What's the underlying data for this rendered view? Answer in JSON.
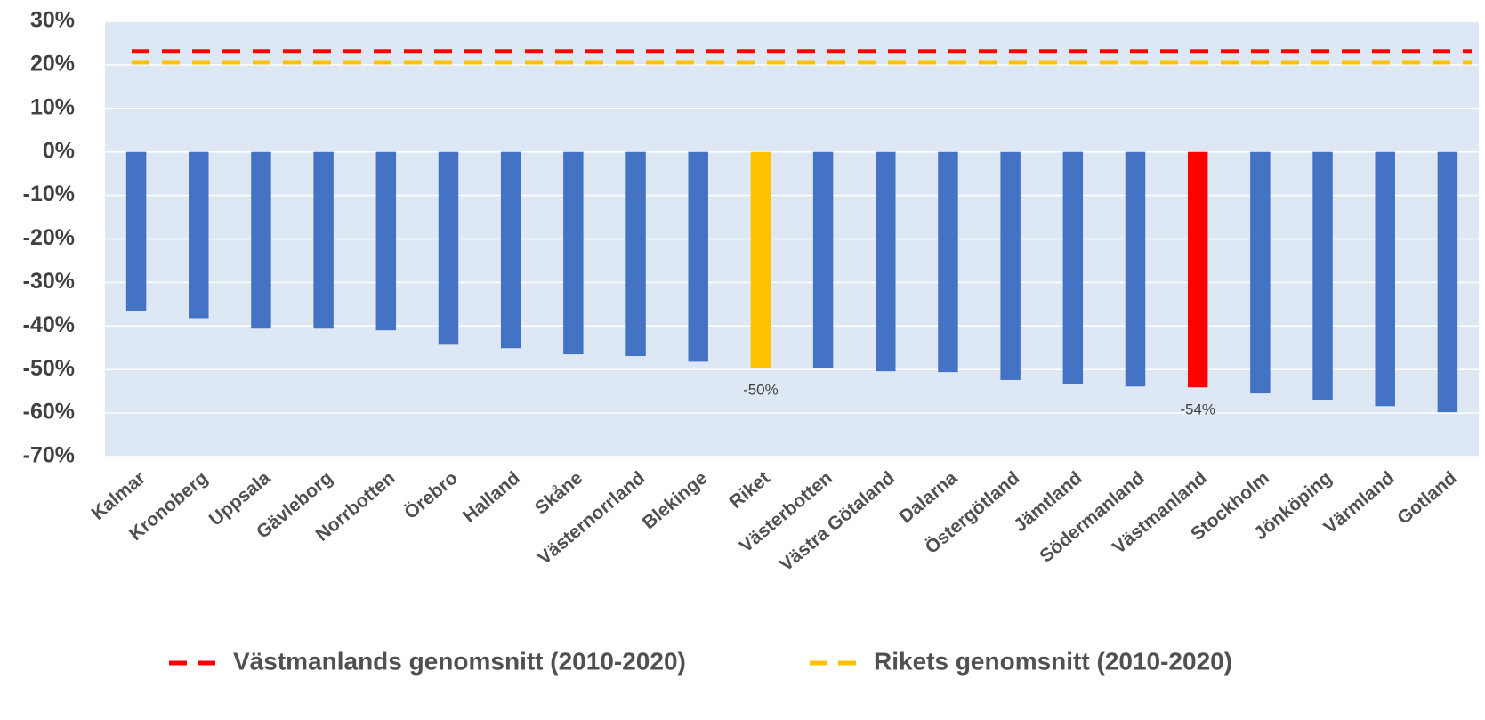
{
  "chart_data": {
    "type": "bar",
    "categories": [
      "Kalmar",
      "Kronoberg",
      "Uppsala",
      "Gävleborg",
      "Norrbotten",
      "Örebro",
      "Halland",
      "Skåne",
      "Västernorrland",
      "Blekinge",
      "Riket",
      "Västerbotten",
      "Västra Götaland",
      "Dalarna",
      "Östergötland",
      "Jämtland",
      "Södermanland",
      "Västmanland",
      "Stockholm",
      "Jönköping",
      "Värmland",
      "Gotland"
    ],
    "values": [
      -36.5,
      -38.2,
      -40.6,
      -40.6,
      -41,
      -44.3,
      -45.1,
      -46.5,
      -46.9,
      -48.2,
      -49.6,
      -49.6,
      -50.4,
      -50.6,
      -52.4,
      -53.3,
      -53.9,
      -54.1,
      -55.5,
      -57.1,
      -58.4,
      -59.8
    ],
    "value_labels": [
      null,
      null,
      null,
      null,
      null,
      null,
      null,
      null,
      null,
      null,
      "-50%",
      null,
      null,
      null,
      null,
      null,
      null,
      "-54%",
      null,
      null,
      null,
      null
    ],
    "colors": [
      "#4472c4",
      "#4472c4",
      "#4472c4",
      "#4472c4",
      "#4472c4",
      "#4472c4",
      "#4472c4",
      "#4472c4",
      "#4472c4",
      "#4472c4",
      "#ffc000",
      "#4472c4",
      "#4472c4",
      "#4472c4",
      "#4472c4",
      "#4472c4",
      "#4472c4",
      "#ff0000",
      "#4472c4",
      "#4472c4",
      "#4472c4",
      "#4472c4"
    ],
    "reference_lines": [
      {
        "name": "Västmanlands genomsnitt (2010-2020)",
        "color": "#ff0000",
        "value": 23.1
      },
      {
        "name": "Rikets genomsnitt (2010-2020)",
        "color": "#ffc000",
        "value": 20.6
      }
    ],
    "ylim": [
      -70,
      30
    ],
    "yticks": [
      {
        "value": -70,
        "label": "-70%"
      },
      {
        "value": -60,
        "label": "-60%"
      },
      {
        "value": -50,
        "label": "-50%"
      },
      {
        "value": -40,
        "label": "-40%"
      },
      {
        "value": -30,
        "label": "-30%"
      },
      {
        "value": -20,
        "label": "-20%"
      },
      {
        "value": -10,
        "label": "-10%"
      },
      {
        "value": 0,
        "label": "0%"
      },
      {
        "value": 10,
        "label": "10%"
      },
      {
        "value": 20,
        "label": "20%"
      },
      {
        "value": 30,
        "label": "30%"
      }
    ],
    "grid": true,
    "plot_background": "#dee8f4",
    "legend": "bottom"
  }
}
